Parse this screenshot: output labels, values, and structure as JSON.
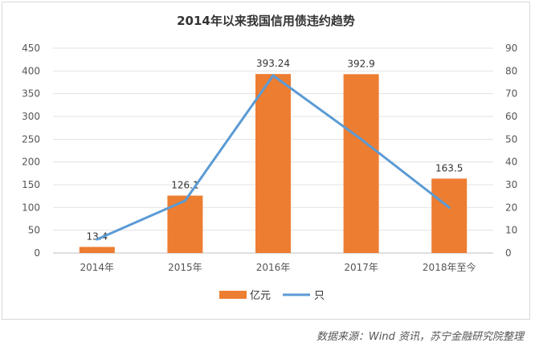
{
  "chart_data": {
    "type": "bar",
    "title": "2014年以来我国信用债违约趋势",
    "categories": [
      "2014年",
      "2015年",
      "2016年",
      "2017年",
      "2018年至今"
    ],
    "series": [
      {
        "name": "亿元",
        "type": "bar",
        "axis": "left",
        "color": "#ed7d31",
        "values": [
          13.4,
          126.1,
          393.24,
          392.9,
          163.5
        ],
        "labels": [
          "13.4",
          "126.1",
          "393.24",
          "392.9",
          "163.5"
        ]
      },
      {
        "name": "只",
        "type": "line",
        "axis": "right",
        "color": "#5b9bd5",
        "values": [
          6,
          23,
          78,
          50,
          20
        ]
      }
    ],
    "ylim_left": [
      0,
      450
    ],
    "yticks_left": [
      "0",
      "50",
      "100",
      "150",
      "200",
      "250",
      "300",
      "350",
      "400",
      "450"
    ],
    "ylim_right": [
      0,
      90
    ],
    "yticks_right": [
      "0",
      "10",
      "20",
      "30",
      "40",
      "50",
      "60",
      "70",
      "80",
      "90"
    ],
    "grid": true,
    "legend": "bottom"
  },
  "source_note": "数据来源：Wind 资讯，苏宁金融研究院整理"
}
